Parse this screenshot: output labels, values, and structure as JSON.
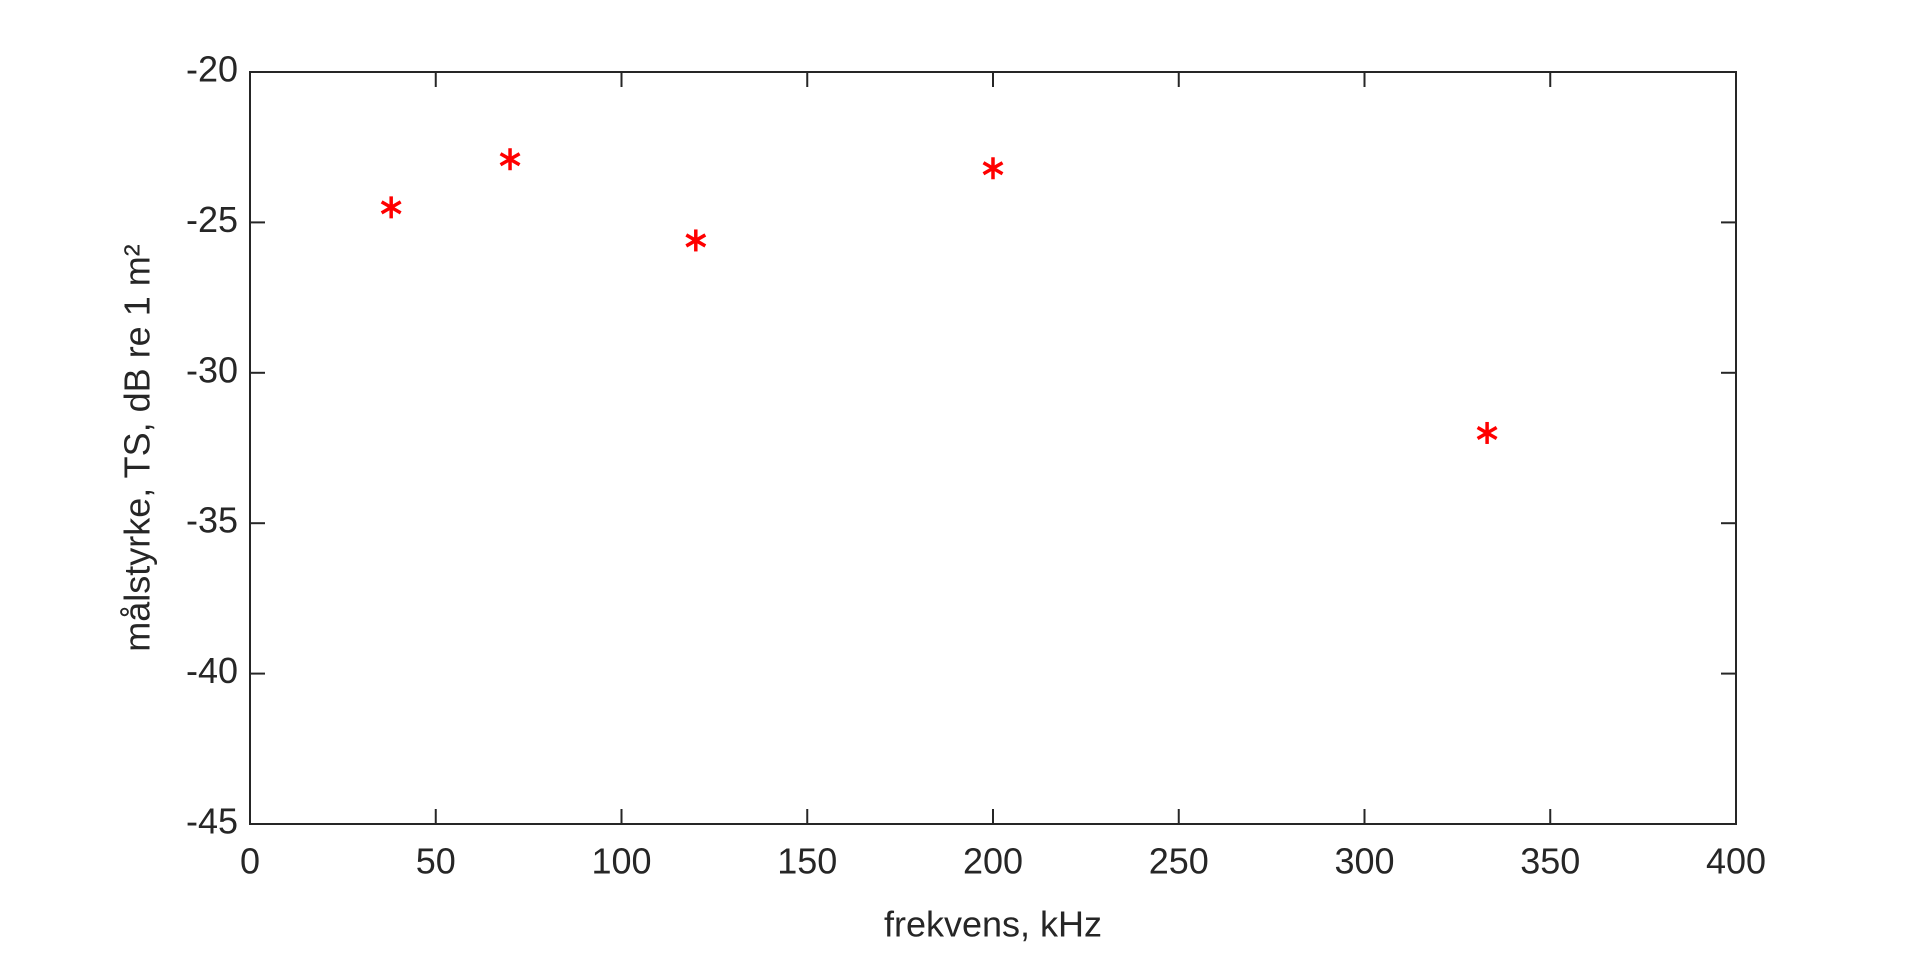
{
  "chart_data": {
    "type": "scatter",
    "xlabel": "frekvens, kHz",
    "ylabel": "målstyrke, TS, dB re 1 m²",
    "x": [
      38,
      70,
      120,
      200,
      333
    ],
    "series": [
      {
        "color": "#ff0000",
        "values": [
          -24.5,
          -22.9,
          -25.6,
          -23.2,
          -32.0
        ]
      }
    ],
    "xlim": [
      0,
      400
    ],
    "xticks": [
      0,
      50,
      100,
      150,
      200,
      250,
      300,
      350,
      400
    ],
    "ylim": [
      -45,
      -20
    ],
    "yticks": [
      -45,
      -40,
      -35,
      -30,
      -25,
      -20
    ],
    "marker": "asterisk",
    "grid": false
  }
}
